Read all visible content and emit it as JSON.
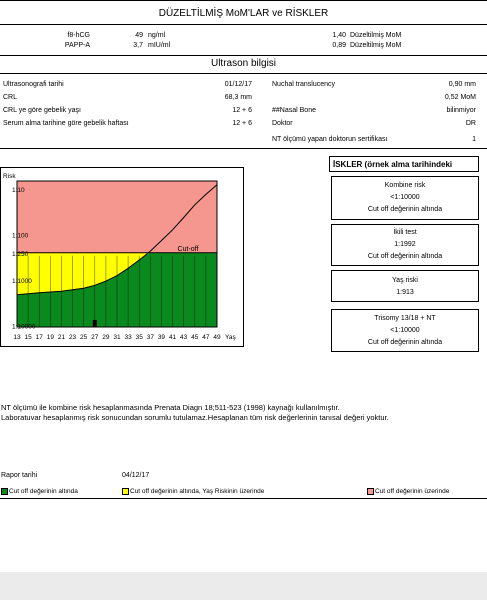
{
  "mom": {
    "title": "DÜZELTİLMİŞ  MoM'LAR ve RİSKLER",
    "rows": [
      {
        "name": "f8-hCG",
        "value": "49",
        "unit": "ng/ml",
        "mom": "1,40",
        "mom_label": "Düzeltilmiş  MoM"
      },
      {
        "name": "PAPP-A",
        "value": "3,7",
        "unit": "mIU/ml",
        "mom": "0,89",
        "mom_label": "Düzeltilmiş  MoM"
      }
    ]
  },
  "ultrasound": {
    "title": "Ultrason bilgisi",
    "left": [
      {
        "label": "Ultrasonografi tarihi",
        "value": "01/12/17"
      },
      {
        "label": "CRL",
        "value": "68,3 mm"
      },
      {
        "label": "CRL ye göre gebelik yaşı",
        "value": "12 +  6"
      },
      {
        "label": "Serum alma tarihine göre gebelik haftası",
        "value": "12 +  6"
      }
    ],
    "right": [
      {
        "label": "Nuchal translucency",
        "value": "0,90   mm"
      },
      {
        "label": "",
        "value": "0,52 MoM"
      },
      {
        "label": "##Nasal Bone",
        "value": "bilinmiyor"
      },
      {
        "label": "Doktor",
        "value": "DR"
      },
      {
        "label": "NT ölçümü yapan doktorun sertifikası",
        "value": "1"
      }
    ]
  },
  "chart_data": {
    "type": "area",
    "y_scale": "log",
    "ylabel": "Risk",
    "xlabel": "Yaş",
    "y_ticks": [
      "1:10",
      "1:100",
      "1:250",
      "1:1000",
      "1:10000"
    ],
    "x_ticks": [
      "13",
      "15",
      "17",
      "19",
      "21",
      "23",
      "25",
      "27",
      "29",
      "31",
      "33",
      "35",
      "37",
      "39",
      "41",
      "43",
      "45",
      "47",
      "49"
    ],
    "cutoff_label": "Cut-off",
    "cutoff_risk": "1:250",
    "zones": [
      {
        "label": "Cut off değerinin altında",
        "color": "#0a8a1e"
      },
      {
        "label": "Cut off değerinin  altında, Yaş Riskinin üzerinde",
        "color": "#ffff00"
      },
      {
        "label": "Cut off değerinin üzerinde",
        "color": "#f5978e"
      }
    ]
  },
  "risks": {
    "header": "İSKLER (örnek alma tarihindeki",
    "boxes": [
      {
        "title": "Kombine risk",
        "value": "<1:10000",
        "note": "Cut off değerinin altında"
      },
      {
        "title": "İkili test",
        "value": "1:1992",
        "note": "Cut off değerinin altında"
      },
      {
        "title": "Yaş riski",
        "value": "1:913",
        "note": ""
      },
      {
        "title": "Trisomy 13/18 + NT",
        "value": "<1:10000",
        "note": "Cut off değerinin altında"
      }
    ]
  },
  "notes": {
    "line1": "NT ölçümü ile  kombine risk hesaplanmasında Prenata Diagn 18;511-523 (1998) kaynağı kullanılmıştır.",
    "line2": "Laboratuvar hesaplanmış risk sonucundan sorumlu tutulamaz.Hesaplanan tüm risk değerlerinin  tanısal değeri yoktur."
  },
  "report": {
    "label": "Rapor tarihi",
    "date": "04/12/17"
  },
  "legend": [
    {
      "label": "Cut off değerinin altında",
      "color": "#0a8a1e"
    },
    {
      "label": "Cut off değerinin  altında, Yaş Riskinin üzerinde",
      "color": "#ffff00"
    },
    {
      "label": "Cut off değerinin üzerinde",
      "color": "#f5978e"
    }
  ]
}
